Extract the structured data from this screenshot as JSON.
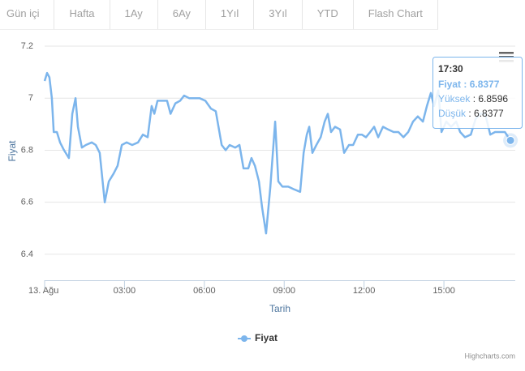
{
  "tabs": [
    "Gün içi",
    "Hafta",
    "1Ay",
    "6Ay",
    "1Yıl",
    "3Yıl",
    "YTD",
    "Flash Chart"
  ],
  "chart_data": {
    "type": "line",
    "xlabel": "Tarih",
    "ylabel": "Fiyat",
    "x": [
      0,
      0.09,
      0.18,
      0.27,
      0.34,
      0.46,
      0.58,
      0.73,
      0.91,
      1.04,
      1.16,
      1.25,
      1.4,
      1.55,
      1.77,
      1.92,
      2.07,
      2.26,
      2.41,
      2.59,
      2.74,
      2.9,
      3.08,
      3.29,
      3.51,
      3.69,
      3.87,
      4.02,
      4.12,
      4.24,
      4.39,
      4.6,
      4.73,
      4.91,
      5.09,
      5.24,
      5.43,
      5.64,
      5.82,
      6.04,
      6.25,
      6.43,
      6.65,
      6.8,
      6.95,
      7.16,
      7.32,
      7.47,
      7.65,
      7.77,
      7.9,
      8.05,
      8.17,
      8.32,
      8.48,
      8.66,
      8.78,
      8.93,
      9.15,
      9.36,
      9.6,
      9.73,
      9.85,
      9.94,
      10.06,
      10.21,
      10.37,
      10.52,
      10.64,
      10.76,
      10.91,
      11.1,
      11.25,
      11.43,
      11.59,
      11.77,
      11.92,
      12.07,
      12.23,
      12.38,
      12.53,
      12.71,
      12.9,
      13.11,
      13.29,
      13.48,
      13.66,
      13.84,
      14.02,
      14.21,
      14.36,
      14.51,
      14.63,
      14.79,
      14.91,
      15.09,
      15.27,
      15.46,
      15.61,
      15.79,
      16.01,
      16.19,
      16.37,
      16.55,
      16.74,
      16.92,
      17.1,
      17.29,
      17.5
    ],
    "series": [
      {
        "name": "Fiyat",
        "color": "#7cb5ec",
        "values": [
          7.066,
          7.097,
          7.08,
          7.0,
          6.87,
          6.87,
          6.83,
          6.8,
          6.77,
          6.94,
          7.0,
          6.89,
          6.81,
          6.82,
          6.83,
          6.82,
          6.79,
          6.6,
          6.68,
          6.71,
          6.74,
          6.82,
          6.83,
          6.82,
          6.83,
          6.86,
          6.85,
          6.97,
          6.94,
          6.99,
          6.99,
          6.99,
          6.94,
          6.98,
          6.99,
          7.01,
          7.0,
          7.0,
          7.0,
          6.99,
          6.96,
          6.95,
          6.82,
          6.8,
          6.82,
          6.81,
          6.82,
          6.73,
          6.73,
          6.77,
          6.74,
          6.68,
          6.58,
          6.48,
          6.66,
          6.91,
          6.68,
          6.66,
          6.66,
          6.65,
          6.64,
          6.79,
          6.86,
          6.89,
          6.79,
          6.82,
          6.85,
          6.91,
          6.94,
          6.87,
          6.89,
          6.88,
          6.79,
          6.82,
          6.82,
          6.86,
          6.86,
          6.85,
          6.87,
          6.89,
          6.85,
          6.89,
          6.88,
          6.87,
          6.87,
          6.85,
          6.87,
          6.91,
          6.93,
          6.91,
          6.97,
          7.02,
          6.97,
          7.03,
          6.87,
          6.91,
          6.89,
          6.91,
          6.87,
          6.85,
          6.86,
          6.92,
          6.94,
          6.94,
          6.86,
          6.87,
          6.87,
          6.87,
          6.8377
        ]
      }
    ],
    "xlim": [
      0,
      17.68
    ],
    "xticks": [
      {
        "value": 0,
        "label": "13. Ağu"
      },
      {
        "value": 3,
        "label": "03:00"
      },
      {
        "value": 6,
        "label": "06:00"
      },
      {
        "value": 9,
        "label": "09:00"
      },
      {
        "value": 12,
        "label": "12:00"
      },
      {
        "value": 15,
        "label": "15:00"
      }
    ],
    "ylim": [
      6.3,
      7.2
    ],
    "yticks": [
      6.4,
      6.6,
      6.8,
      7,
      7.2
    ],
    "grid": true,
    "tooltip": {
      "title": "17:30",
      "rows": [
        {
          "label": "Fiyat",
          "value": 6.8377
        },
        {
          "label": "Yüksek",
          "value": 6.8596
        },
        {
          "label": "Düşük",
          "value": 6.8377
        }
      ]
    },
    "credits": "Highcharts.com"
  }
}
